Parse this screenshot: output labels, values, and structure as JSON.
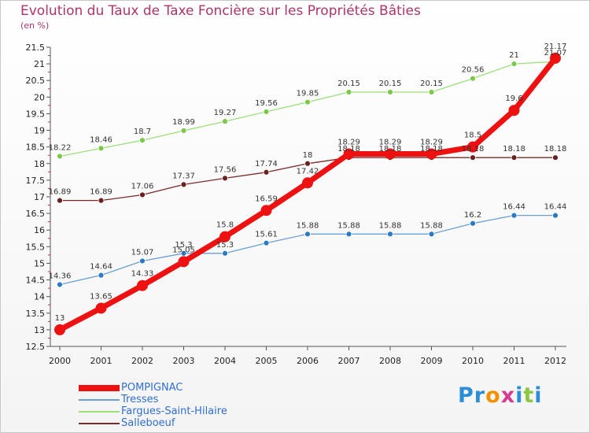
{
  "title": "Evolution du Taux de Taxe Foncière sur les Propriétés Bâties",
  "subtitle": "(en %)",
  "logo": {
    "text": "Proxiti",
    "letters": [
      "P",
      "r",
      "o",
      "x",
      "i",
      "t",
      "i"
    ],
    "colors": [
      "#2d8ed6",
      "#2d8ed6",
      "#f39200",
      "#d63b8f",
      "#2d8ed6",
      "#8cc63f",
      "#2d8ed6"
    ]
  },
  "chart_data": {
    "type": "line",
    "title": "Evolution du Taux de Taxe Foncière sur les Propriétés Bâties",
    "ylabel": "(en %)",
    "xlabel": "",
    "x": [
      "2000",
      "2001",
      "2002",
      "2003",
      "2004",
      "2005",
      "2006",
      "2007",
      "2008",
      "2009",
      "2010",
      "2011",
      "2012"
    ],
    "ylim": [
      12.5,
      21.5
    ],
    "yticks": [
      "12.5",
      "13",
      "13.5",
      "14",
      "14.5",
      "15",
      "15.5",
      "16",
      "16.5",
      "17",
      "17.5",
      "18",
      "18.5",
      "19",
      "19.5",
      "20",
      "20.5",
      "21",
      "21.5"
    ],
    "grid": false,
    "legend": "bottom-left",
    "series": [
      {
        "name": "POMPIGNAC",
        "color": "#ee1111",
        "markerColor": "#ee1111",
        "width": 7,
        "marker": 7,
        "values": [
          13,
          13.65,
          14.33,
          15.05,
          15.8,
          16.59,
          17.42,
          18.29,
          18.29,
          18.29,
          18.5,
          19.6,
          21.17
        ],
        "labels": [
          "13",
          "13.65",
          "14.33",
          "15.05",
          "15.8",
          "16.59",
          "17.42",
          "18.29",
          "18.29",
          "18.29",
          "18.5",
          "19.6",
          "21.17"
        ]
      },
      {
        "name": "Tresses",
        "color": "#6a9fd4",
        "markerColor": "#2b7bc4",
        "width": 1.3,
        "marker": 3.5,
        "values": [
          14.36,
          14.64,
          15.07,
          15.3,
          15.3,
          15.61,
          15.88,
          15.88,
          15.88,
          15.88,
          16.2,
          16.44,
          16.44
        ],
        "labels": [
          "14.36",
          "14.64",
          "15.07",
          "15.3",
          "15.3",
          "15.61",
          "15.88",
          "15.88",
          "15.88",
          "15.88",
          "16.2",
          "16.44",
          "16.44"
        ]
      },
      {
        "name": "Fargues-Saint-Hilaire",
        "color": "#9be07a",
        "markerColor": "#7cc84a",
        "width": 1.3,
        "marker": 3.5,
        "values": [
          18.22,
          18.46,
          18.7,
          18.99,
          19.27,
          19.56,
          19.85,
          20.15,
          20.15,
          20.15,
          20.56,
          21,
          21.07
        ],
        "labels": [
          "18.22",
          "18.46",
          "18.7",
          "18.99",
          "19.27",
          "19.56",
          "19.85",
          "20.15",
          "20.15",
          "20.15",
          "20.56",
          "21",
          "21.07"
        ]
      },
      {
        "name": "Salleboeuf",
        "color": "#7a2a2a",
        "markerColor": "#6b1f1f",
        "width": 1.3,
        "marker": 3.5,
        "values": [
          16.89,
          16.89,
          17.06,
          17.37,
          17.56,
          17.74,
          18,
          18.18,
          18.18,
          18.18,
          18.18,
          18.18,
          18.18
        ],
        "labels": [
          "16.89",
          "16.89",
          "17.06",
          "17.37",
          "17.56",
          "17.74",
          "18",
          "18.18",
          "18.18",
          "18.18",
          "18.18",
          "18.18",
          "18.18"
        ]
      }
    ]
  }
}
